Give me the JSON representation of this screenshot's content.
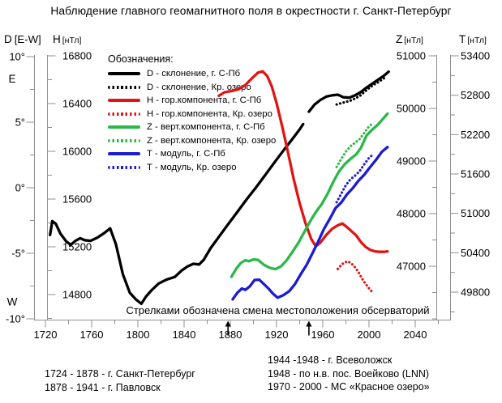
{
  "title": "Наблюдение главного геомагнитного поля в окрестности г. Санкт-Петербург",
  "legend": {
    "title": "Обозначения:",
    "items": [
      {
        "label": "D - склонение, г. С-Пб",
        "color": "#000000",
        "style": "solid"
      },
      {
        "label": "D - склонение, Кр. озеро",
        "color": "#000000",
        "style": "dotted"
      },
      {
        "label": "H - гор.компонента, г. С-Пб",
        "color": "#e01414",
        "style": "solid"
      },
      {
        "label": "H - гор.компонента, Кр. озеро",
        "color": "#e01414",
        "style": "dotted"
      },
      {
        "label": "Z - верт.компонента, г. С-Пб",
        "color": "#2cb847",
        "style": "solid"
      },
      {
        "label": "Z - верт.компонента, Кр. озеро",
        "color": "#2cb847",
        "style": "dotted"
      },
      {
        "label": "T - модуль, г. С-Пб",
        "color": "#1b1bd1",
        "style": "solid"
      },
      {
        "label": "T - модуль, Кр. озеро",
        "color": "#1b1bd1",
        "style": "dotted"
      }
    ]
  },
  "footnote": "Стрелками обозначена смена местоположения обсерваторий",
  "history_notes": {
    "left": [
      "1724 - 1878 - г. Санкт-Петербург",
      "1878 - 1941 - г. Павловск"
    ],
    "right": [
      "1944 -1948 - г. Всеволожск",
      "1948 - по н.в. пос. Воейково (LNN)",
      "1970 - 2000 - МС «Красное озеро»"
    ]
  },
  "chart_data": {
    "type": "line",
    "x_axis": {
      "ticks": [
        1720,
        1760,
        1800,
        1840,
        1880,
        1920,
        1960,
        2000,
        2040
      ],
      "minor_ticks": [
        1740,
        1780,
        1820,
        1860,
        1900,
        1940,
        1980,
        2020,
        2060
      ],
      "range": [
        1720,
        2040
      ]
    },
    "axes": {
      "d": {
        "name": "D",
        "unit": "[E-W]",
        "side": "left",
        "ticks": [
          10,
          5,
          0,
          -5,
          -10
        ],
        "tick_labels": [
          "10°",
          "5°",
          "0°",
          "-5°",
          "-10°"
        ],
        "minor_ticks": [
          7.5,
          2.5,
          -2.5,
          -7.5
        ],
        "direction_labels": [
          {
            "text": "E",
            "value": 8.3
          },
          {
            "text": "W",
            "value": -8.7
          }
        ]
      },
      "h": {
        "name": "H",
        "unit": "[нТл]",
        "side": "left",
        "ticks": [
          16800,
          16400,
          16000,
          15600,
          15200,
          14800
        ],
        "tick_labels": [
          "16800",
          "16400",
          "16000",
          "15600",
          "15200",
          "14800"
        ],
        "minor_ticks": [
          16600,
          16200,
          15800,
          15400,
          15000,
          14600
        ]
      },
      "z": {
        "name": "Z",
        "unit": "[нТл]",
        "side": "right",
        "ticks": [
          51000,
          50000,
          49000,
          48000,
          47000
        ],
        "tick_labels": [
          "51000",
          "50000",
          "49000",
          "48000",
          "47000"
        ],
        "minor_ticks": [
          50500,
          49500,
          48500,
          47500,
          46500,
          46000
        ]
      },
      "t": {
        "name": "T",
        "unit": "[нТл]",
        "side": "right",
        "ticks": [
          53400,
          52800,
          52200,
          51600,
          51000,
          50400,
          49800
        ],
        "tick_labels": [
          "53400",
          "52800",
          "52200",
          "51600",
          "51000",
          "50400",
          "49800"
        ],
        "minor_ticks": [
          53100,
          52500,
          51900,
          51300,
          50700,
          50100,
          49500
        ]
      }
    },
    "relocation_arrows_years": [
      1878,
      1948
    ],
    "series": [
      {
        "id": "d-spb",
        "label": "D - склонение, г. С-Пб",
        "axis": "d",
        "color": "#000000",
        "style": "solid",
        "segments": [
          [
            [
              1724,
              -3.6
            ],
            [
              1726,
              -2.55
            ],
            [
              1729,
              -2.75
            ],
            [
              1733,
              -3.5
            ],
            [
              1738,
              -4.1
            ],
            [
              1742,
              -4.35
            ],
            [
              1746,
              -4.05
            ],
            [
              1750,
              -3.85
            ],
            [
              1754,
              -4.0
            ],
            [
              1759,
              -4.05
            ],
            [
              1765,
              -3.8
            ],
            [
              1771,
              -3.45
            ],
            [
              1776,
              -3.1
            ],
            [
              1781,
              -4.3
            ],
            [
              1787,
              -6.6
            ],
            [
              1793,
              -8.0
            ],
            [
              1798,
              -8.5
            ],
            [
              1803,
              -8.85
            ],
            [
              1807,
              -8.3
            ],
            [
              1812,
              -7.8
            ],
            [
              1818,
              -7.3
            ],
            [
              1825,
              -7.0
            ],
            [
              1832,
              -6.8
            ],
            [
              1838,
              -6.3
            ],
            [
              1843,
              -6.0
            ],
            [
              1848,
              -5.8
            ],
            [
              1853,
              -5.85
            ],
            [
              1857,
              -5.5
            ],
            [
              1863,
              -4.6
            ],
            [
              1870,
              -3.75
            ],
            [
              1878,
              -2.8
            ],
            [
              1886,
              -1.85
            ],
            [
              1894,
              -0.9
            ],
            [
              1902,
              0.0
            ],
            [
              1910,
              0.95
            ],
            [
              1918,
              1.9
            ],
            [
              1926,
              2.85
            ],
            [
              1934,
              3.75
            ],
            [
              1940,
              4.45
            ],
            [
              1943,
              4.85
            ]
          ],
          [
            [
              1948,
              5.8
            ],
            [
              1953,
              6.35
            ],
            [
              1958,
              6.7
            ],
            [
              1963,
              6.95
            ],
            [
              1968,
              7.05
            ],
            [
              1973,
              7.1
            ],
            [
              1978,
              6.9
            ],
            [
              1983,
              6.87
            ],
            [
              1988,
              7.05
            ],
            [
              1993,
              7.3
            ],
            [
              1998,
              7.65
            ],
            [
              2003,
              7.95
            ],
            [
              2008,
              8.25
            ],
            [
              2013,
              8.55
            ],
            [
              2017,
              8.85
            ]
          ]
        ]
      },
      {
        "id": "d-kr",
        "label": "D - склонение, Кр. озеро",
        "axis": "d",
        "color": "#000000",
        "style": "dotted",
        "segments": [
          [
            [
              1972,
              6.35
            ],
            [
              1976,
              6.45
            ],
            [
              1980,
              6.55
            ],
            [
              1984,
              6.65
            ],
            [
              1988,
              6.8
            ],
            [
              1992,
              7.0
            ],
            [
              1996,
              7.3
            ],
            [
              2000,
              7.6
            ],
            [
              2004,
              7.85
            ],
            [
              2008,
              8.05
            ],
            [
              2012,
              8.3
            ],
            [
              2015,
              8.45
            ]
          ]
        ]
      },
      {
        "id": "h-spb",
        "label": "H - гор.компонента, г. С-Пб",
        "axis": "h",
        "color": "#e01414",
        "style": "solid",
        "segments": [
          [
            [
              1870,
              16465
            ],
            [
              1875,
              16495
            ],
            [
              1881,
              16505
            ],
            [
              1887,
              16520
            ],
            [
              1893,
              16555
            ],
            [
              1899,
              16615
            ],
            [
              1904,
              16660
            ],
            [
              1908,
              16670
            ],
            [
              1912,
              16630
            ],
            [
              1916,
              16540
            ],
            [
              1920,
              16405
            ],
            [
              1925,
              16205
            ],
            [
              1930,
              15985
            ],
            [
              1935,
              15760
            ],
            [
              1940,
              15565
            ],
            [
              1945,
              15400
            ],
            [
              1950,
              15265
            ],
            [
              1954,
              15205
            ],
            [
              1958,
              15235
            ],
            [
              1963,
              15300
            ],
            [
              1968,
              15350
            ],
            [
              1973,
              15380
            ],
            [
              1977,
              15395
            ],
            [
              1981,
              15365
            ],
            [
              1985,
              15330
            ],
            [
              1989,
              15295
            ],
            [
              1993,
              15240
            ],
            [
              1997,
              15200
            ],
            [
              2001,
              15175
            ],
            [
              2005,
              15162
            ],
            [
              2009,
              15158
            ],
            [
              2013,
              15158
            ],
            [
              2016,
              15162
            ]
          ]
        ]
      },
      {
        "id": "h-kr",
        "label": "H - гор.компонента, Кр. озеро",
        "axis": "h",
        "color": "#e01414",
        "style": "dotted",
        "segments": [
          [
            [
              1973,
              15015
            ],
            [
              1976,
              15048
            ],
            [
              1979,
              15070
            ],
            [
              1982,
              15078
            ],
            [
              1985,
              15058
            ],
            [
              1988,
              15028
            ],
            [
              1991,
              14985
            ],
            [
              1994,
              14935
            ],
            [
              1997,
              14890
            ],
            [
              2000,
              14852
            ],
            [
              2003,
              14818
            ]
          ]
        ]
      },
      {
        "id": "z-spb",
        "label": "Z - верт.компонента, г. С-Пб",
        "axis": "z",
        "color": "#2cb847",
        "style": "solid",
        "segments": [
          [
            [
              1881,
              46800
            ],
            [
              1885,
              46950
            ],
            [
              1889,
              47060
            ],
            [
              1893,
              47115
            ],
            [
              1896,
              47095
            ],
            [
              1900,
              47130
            ],
            [
              1904,
              47120
            ],
            [
              1909,
              47030
            ],
            [
              1914,
              46970
            ],
            [
              1919,
              46945
            ],
            [
              1924,
              47000
            ],
            [
              1929,
              47120
            ],
            [
              1934,
              47280
            ],
            [
              1939,
              47450
            ],
            [
              1944,
              47650
            ],
            [
              1949,
              47850
            ],
            [
              1954,
              48030
            ],
            [
              1959,
              48180
            ],
            [
              1964,
              48370
            ],
            [
              1969,
              48600
            ],
            [
              1974,
              48800
            ],
            [
              1979,
              48940
            ],
            [
              1984,
              49040
            ],
            [
              1989,
              49130
            ],
            [
              1993,
              49250
            ],
            [
              1998,
              49490
            ],
            [
              2003,
              49600
            ],
            [
              2008,
              49700
            ],
            [
              2012,
              49800
            ],
            [
              2016,
              49900
            ]
          ]
        ]
      },
      {
        "id": "z-kr",
        "label": "Z - верт.компонента, Кр. озеро",
        "axis": "z",
        "color": "#2cb847",
        "style": "dotted",
        "segments": [
          [
            [
              1972,
              48890
            ],
            [
              1976,
              49040
            ],
            [
              1980,
              49180
            ],
            [
              1984,
              49280
            ],
            [
              1988,
              49350
            ],
            [
              1992,
              49420
            ],
            [
              1996,
              49540
            ],
            [
              2000,
              49660
            ],
            [
              2004,
              49730
            ]
          ]
        ]
      },
      {
        "id": "t-spb",
        "label": "T - модуль, г. С-Пб",
        "axis": "t",
        "color": "#1b1bd1",
        "style": "solid",
        "segments": [
          [
            [
              1882,
              49690
            ],
            [
              1886,
              49790
            ],
            [
              1890,
              49855
            ],
            [
              1893,
              49835
            ],
            [
              1897,
              49890
            ],
            [
              1901,
              49985
            ],
            [
              1905,
              49990
            ],
            [
              1909,
              49925
            ],
            [
              1913,
              49855
            ],
            [
              1917,
              49775
            ],
            [
              1921,
              49715
            ],
            [
              1926,
              49755
            ],
            [
              1931,
              49815
            ],
            [
              1936,
              49925
            ],
            [
              1941,
              50075
            ],
            [
              1946,
              50215
            ],
            [
              1951,
              50390
            ],
            [
              1956,
              50570
            ],
            [
              1961,
              50760
            ],
            [
              1966,
              50915
            ],
            [
              1971,
              51080
            ],
            [
              1976,
              51165
            ],
            [
              1981,
              51290
            ],
            [
              1986,
              51385
            ],
            [
              1991,
              51500
            ],
            [
              1996,
              51590
            ],
            [
              2001,
              51705
            ],
            [
              2006,
              51815
            ],
            [
              2011,
              51935
            ],
            [
              2016,
              52010
            ]
          ]
        ]
      },
      {
        "id": "t-kr",
        "label": "T - модуль, Кр. озеро",
        "axis": "t",
        "color": "#1b1bd1",
        "style": "dotted",
        "segments": [
          [
            [
              1972,
              51170
            ],
            [
              1976,
              51300
            ],
            [
              1980,
              51430
            ],
            [
              1984,
              51520
            ],
            [
              1988,
              51575
            ],
            [
              1992,
              51645
            ],
            [
              1996,
              51750
            ],
            [
              2000,
              51845
            ],
            [
              2004,
              51905
            ]
          ]
        ]
      }
    ]
  }
}
